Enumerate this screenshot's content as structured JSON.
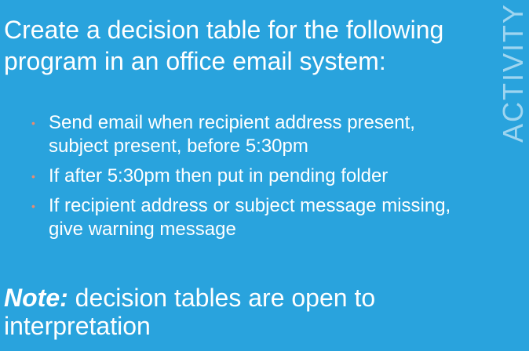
{
  "slide": {
    "background_color": "#29A3DD",
    "bullet_color": "#E98B6F",
    "main_text": "Create a decision table for the following program in an office email system:",
    "bullets": [
      "Send email when recipient address present, subject present, before 5:30pm",
      "If after 5:30pm then put in pending folder",
      "If recipient address or subject message missing, give warning message"
    ],
    "note_label": "Note:",
    "note_text": " decision tables are open to interpretation",
    "side_label": "ACTIVITY"
  }
}
